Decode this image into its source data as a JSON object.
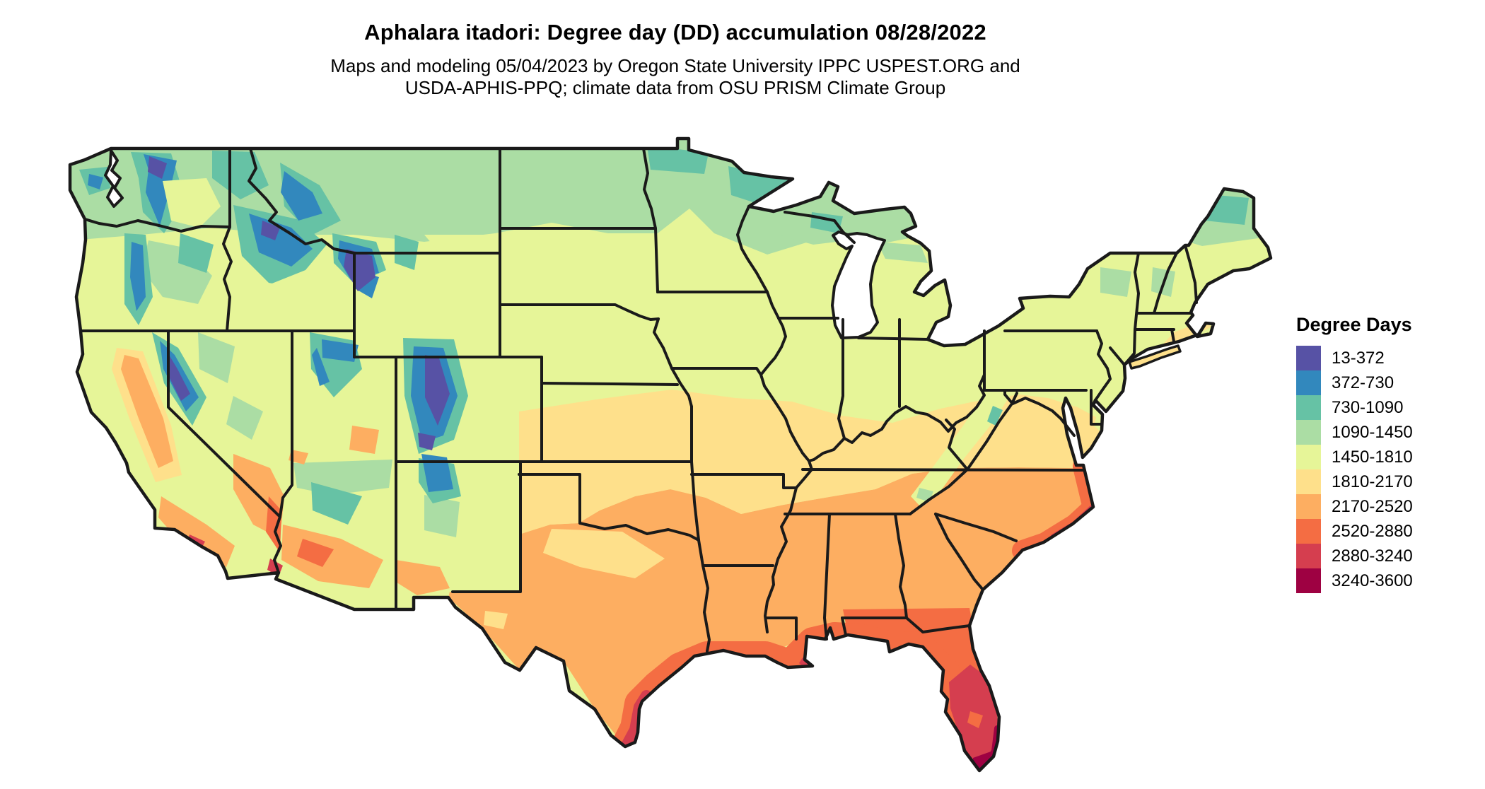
{
  "header": {
    "title": "Aphalara itadori: Degree day (DD) accumulation 08/28/2022",
    "subtitle_line1": "Maps and modeling 05/04/2023 by Oregon State University IPPC USPEST.ORG and",
    "subtitle_line2": "USDA-APHIS-PPQ; climate data from OSU PRISM Climate Group"
  },
  "legend": {
    "title": "Degree Days",
    "items": [
      {
        "label": "13-372",
        "color": "#5752A5"
      },
      {
        "label": "372-730",
        "color": "#3288BD"
      },
      {
        "label": "730-1090",
        "color": "#66C2A5"
      },
      {
        "label": "1090-1450",
        "color": "#ABDDA4"
      },
      {
        "label": "1450-1810",
        "color": "#E6F598"
      },
      {
        "label": "1810-2170",
        "color": "#FEE08B"
      },
      {
        "label": "2170-2520",
        "color": "#FDAE61"
      },
      {
        "label": "2520-2880",
        "color": "#F46D43"
      },
      {
        "label": "2880-3240",
        "color": "#D53E4F"
      },
      {
        "label": "3240-3600",
        "color": "#9E0142"
      }
    ]
  },
  "map": {
    "border_color": "#1A1A1A",
    "water_color": "#FFFFFF"
  }
}
